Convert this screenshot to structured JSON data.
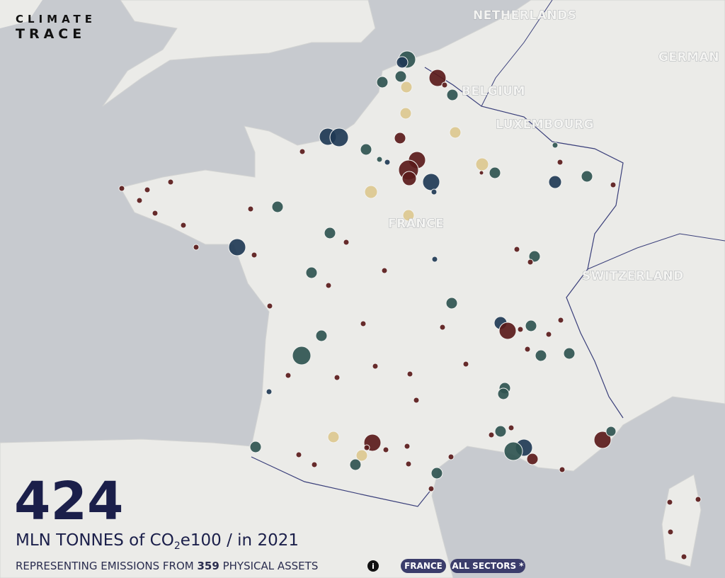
{
  "logo": {
    "line1": "CLIMATE",
    "line2": "TRACE"
  },
  "map_labels": [
    "NETHERLANDS",
    "GERMAN",
    "BELGIUM",
    "LUXEMBOURG",
    "FRANCE",
    "SWITZERLAND"
  ],
  "summary": {
    "total": "424",
    "unit_main": "MLN TONNES of CO",
    "unit_sub": "2",
    "unit_rest": "e100 / in 2021",
    "assets_prefix": "REPRESENTING EMISSIONS FROM",
    "assets_count": "359",
    "assets_suffix": "PHYSICAL ASSETS",
    "info": "i"
  },
  "filters": [
    "FRANCE",
    "ALL SECTORS *"
  ]
}
